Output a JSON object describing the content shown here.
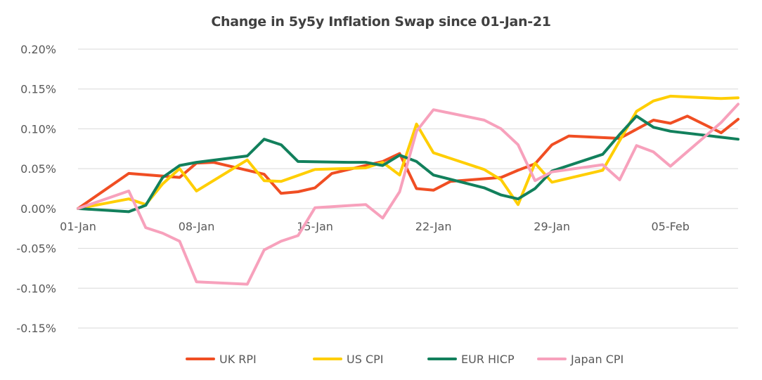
{
  "chart_data": {
    "type": "line",
    "title": "Change in 5y5y Inflation Swap since 01-Jan-21",
    "xlabel": "",
    "ylabel": "",
    "ylim": [
      -0.15,
      0.2
    ],
    "yticks": [
      -0.15,
      -0.1,
      -0.05,
      0.0,
      0.05,
      0.1,
      0.15,
      0.2
    ],
    "ytick_labels": [
      "-0.15%",
      "-0.10%",
      "-0.05%",
      "0.00%",
      "0.05%",
      "0.10%",
      "0.15%",
      "0.20%"
    ],
    "xlim": [
      0,
      39
    ],
    "xticks": [
      0,
      7,
      14,
      21,
      28,
      35
    ],
    "xtick_labels": [
      "01-Jan",
      "08-Jan",
      "15-Jan",
      "22-Jan",
      "29-Jan",
      "05-Feb"
    ],
    "grid": true,
    "legend_position": "bottom",
    "series": [
      {
        "name": "UK RPI",
        "color": "#f04e23",
        "points": [
          [
            0,
            0.0
          ],
          [
            3,
            0.044
          ],
          [
            6,
            0.039
          ],
          [
            7,
            0.057
          ],
          [
            8,
            0.058
          ],
          [
            10,
            0.048
          ],
          [
            11,
            0.043
          ],
          [
            12,
            0.019
          ],
          [
            13,
            0.021
          ],
          [
            14,
            0.026
          ],
          [
            15,
            0.044
          ],
          [
            18,
            0.059
          ],
          [
            19,
            0.069
          ],
          [
            20,
            0.025
          ],
          [
            21,
            0.023
          ],
          [
            22,
            0.034
          ],
          [
            25,
            0.039
          ],
          [
            26,
            0.048
          ],
          [
            27,
            0.056
          ],
          [
            28,
            0.08
          ],
          [
            29,
            0.091
          ],
          [
            32,
            0.088
          ],
          [
            34,
            0.111
          ],
          [
            35,
            0.107
          ],
          [
            36,
            0.116
          ],
          [
            38,
            0.095
          ],
          [
            39,
            0.112
          ]
        ]
      },
      {
        "name": "US CPI",
        "color": "#ffce00",
        "points": [
          [
            0,
            0.0
          ],
          [
            3,
            0.012
          ],
          [
            4,
            0.005
          ],
          [
            5,
            0.031
          ],
          [
            6,
            0.05
          ],
          [
            7,
            0.022
          ],
          [
            10,
            0.061
          ],
          [
            11,
            0.035
          ],
          [
            12,
            0.034
          ],
          [
            14,
            0.049
          ],
          [
            17,
            0.051
          ],
          [
            18,
            0.058
          ],
          [
            19,
            0.042
          ],
          [
            20,
            0.106
          ],
          [
            21,
            0.07
          ],
          [
            24,
            0.049
          ],
          [
            25,
            0.036
          ],
          [
            26,
            0.005
          ],
          [
            27,
            0.057
          ],
          [
            28,
            0.033
          ],
          [
            31,
            0.048
          ],
          [
            33,
            0.122
          ],
          [
            34,
            0.135
          ],
          [
            35,
            0.141
          ],
          [
            38,
            0.138
          ],
          [
            39,
            0.139
          ]
        ]
      },
      {
        "name": "EUR HICP",
        "color": "#12805c",
        "points": [
          [
            0,
            0.0
          ],
          [
            3,
            -0.004
          ],
          [
            4,
            0.004
          ],
          [
            5,
            0.039
          ],
          [
            6,
            0.054
          ],
          [
            7,
            0.058
          ],
          [
            10,
            0.066
          ],
          [
            11,
            0.087
          ],
          [
            12,
            0.08
          ],
          [
            13,
            0.059
          ],
          [
            16,
            0.058
          ],
          [
            17,
            0.058
          ],
          [
            18,
            0.054
          ],
          [
            19,
            0.067
          ],
          [
            20,
            0.059
          ],
          [
            21,
            0.042
          ],
          [
            24,
            0.026
          ],
          [
            25,
            0.017
          ],
          [
            26,
            0.012
          ],
          [
            27,
            0.025
          ],
          [
            28,
            0.047
          ],
          [
            31,
            0.068
          ],
          [
            32,
            0.093
          ],
          [
            33,
            0.116
          ],
          [
            34,
            0.102
          ],
          [
            35,
            0.097
          ],
          [
            39,
            0.087
          ]
        ]
      },
      {
        "name": "Japan CPI",
        "color": "#f7a1bc",
        "points": [
          [
            0,
            0.0
          ],
          [
            3,
            0.022
          ],
          [
            4,
            -0.024
          ],
          [
            5,
            -0.031
          ],
          [
            6,
            -0.041
          ],
          [
            7,
            -0.092
          ],
          [
            10,
            -0.095
          ],
          [
            11,
            -0.052
          ],
          [
            12,
            -0.041
          ],
          [
            13,
            -0.034
          ],
          [
            14,
            0.001
          ],
          [
            17,
            0.005
          ],
          [
            18,
            -0.012
          ],
          [
            19,
            0.021
          ],
          [
            20,
            0.097
          ],
          [
            21,
            0.124
          ],
          [
            24,
            0.111
          ],
          [
            25,
            0.1
          ],
          [
            26,
            0.08
          ],
          [
            27,
            0.035
          ],
          [
            28,
            0.046
          ],
          [
            31,
            0.055
          ],
          [
            32,
            0.036
          ],
          [
            33,
            0.079
          ],
          [
            34,
            0.071
          ],
          [
            35,
            0.053
          ],
          [
            38,
            0.108
          ],
          [
            39,
            0.131
          ]
        ]
      }
    ]
  }
}
